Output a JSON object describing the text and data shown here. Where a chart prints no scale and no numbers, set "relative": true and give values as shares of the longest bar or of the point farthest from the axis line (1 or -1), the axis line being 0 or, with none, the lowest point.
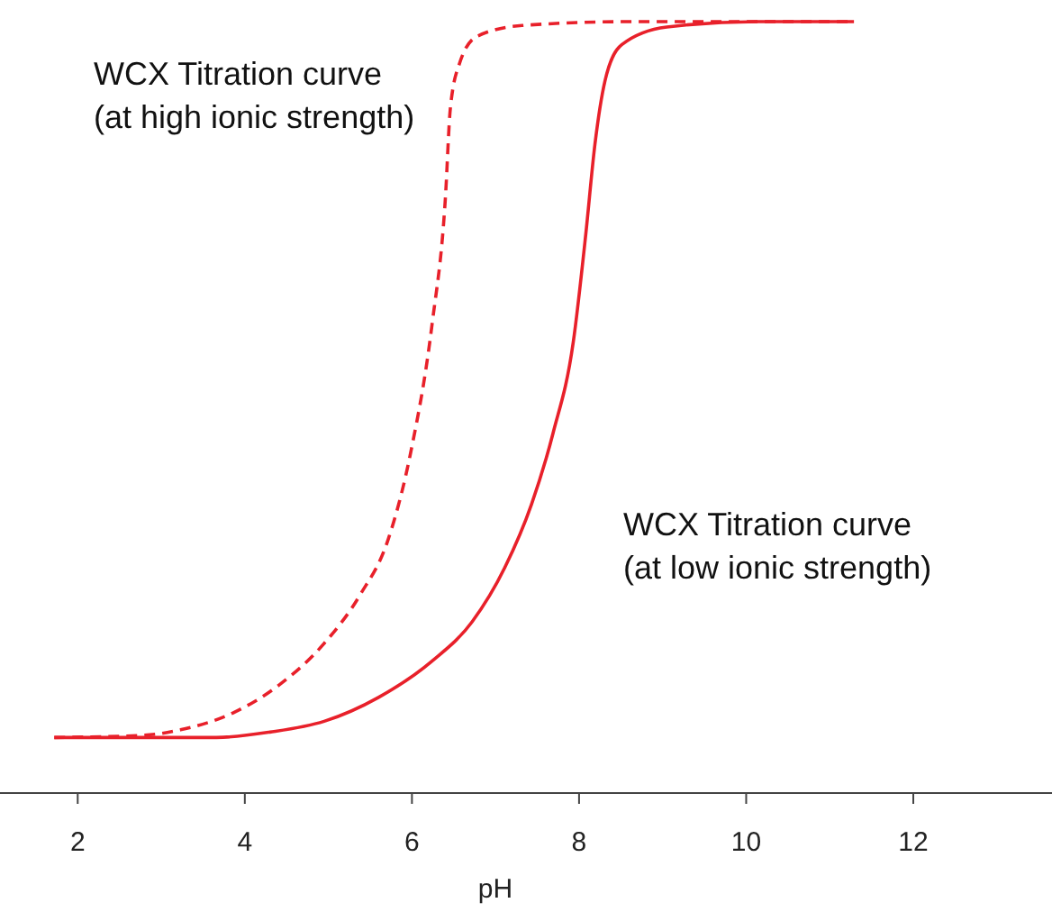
{
  "chart_data": {
    "type": "line",
    "xlabel": "pH",
    "relative": true,
    "xlim": [
      1.07,
      13.66
    ],
    "xticks": [
      2,
      4,
      6,
      8,
      10,
      12
    ],
    "tick_labels": "x",
    "series": [
      {
        "name": "WCX Titration curve\n(at high ionic strength)",
        "color": "#e8202a",
        "line_style": "dashed",
        "x": [
          1.72,
          2.8,
          3.23,
          3.88,
          4.41,
          4.95,
          5.38,
          5.71,
          5.99,
          6.24,
          6.4,
          6.46,
          6.57,
          6.78,
          7.32,
          8.6,
          11.29
        ],
        "values": [
          0.072,
          0.075,
          0.082,
          0.105,
          0.14,
          0.194,
          0.257,
          0.327,
          0.444,
          0.607,
          0.771,
          0.888,
          0.946,
          0.981,
          0.995,
          1,
          1
        ]
      },
      {
        "name": "WCX Titration curve\n(at low ionic strength)",
        "color": "#e8202a",
        "line_style": "solid",
        "x": [
          1.72,
          3.66,
          4.3,
          4.95,
          5.6,
          6.24,
          6.72,
          7.11,
          7.43,
          7.69,
          7.93,
          8.08,
          8.19,
          8.31,
          8.51,
          9.05,
          10.13,
          11.29
        ],
        "values": [
          0.072,
          0.072,
          0.079,
          0.093,
          0.124,
          0.171,
          0.222,
          0.292,
          0.374,
          0.467,
          0.584,
          0.724,
          0.841,
          0.923,
          0.97,
          0.993,
          1,
          1
        ]
      }
    ]
  }
}
